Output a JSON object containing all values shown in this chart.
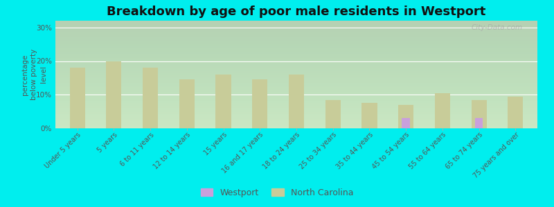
{
  "title": "Breakdown by age of poor male residents in Westport",
  "ylabel": "percentage\nbelow poverty\nlevel",
  "categories": [
    "Under 5 years",
    "5 years",
    "6 to 11 years",
    "12 to 14 years",
    "15 years",
    "16 and 17 years",
    "18 to 24 years",
    "25 to 34 years",
    "35 to 44 years",
    "45 to 54 years",
    "55 to 64 years",
    "65 to 74 years",
    "75 years and over"
  ],
  "westport_values": [
    0,
    0,
    0,
    0,
    0,
    0,
    0,
    0,
    0,
    3.0,
    0,
    3.0,
    0
  ],
  "nc_values": [
    18.0,
    20.0,
    18.0,
    14.5,
    16.0,
    14.5,
    16.0,
    8.5,
    7.5,
    7.0,
    10.5,
    8.5,
    9.5
  ],
  "westport_color": "#c9a0dc",
  "nc_color": "#c8cc99",
  "outer_bg": "#00eeee",
  "ylim": [
    0,
    32
  ],
  "yticks": [
    0,
    10,
    20,
    30
  ],
  "ytick_labels": [
    "0%",
    "10%",
    "20%",
    "30%"
  ],
  "title_fontsize": 13,
  "axis_label_fontsize": 7.5,
  "tick_fontsize": 7.5,
  "legend_fontsize": 9,
  "watermark_text": "City-Data.com",
  "nc_bar_width": 0.42,
  "wp_bar_width": 0.22
}
